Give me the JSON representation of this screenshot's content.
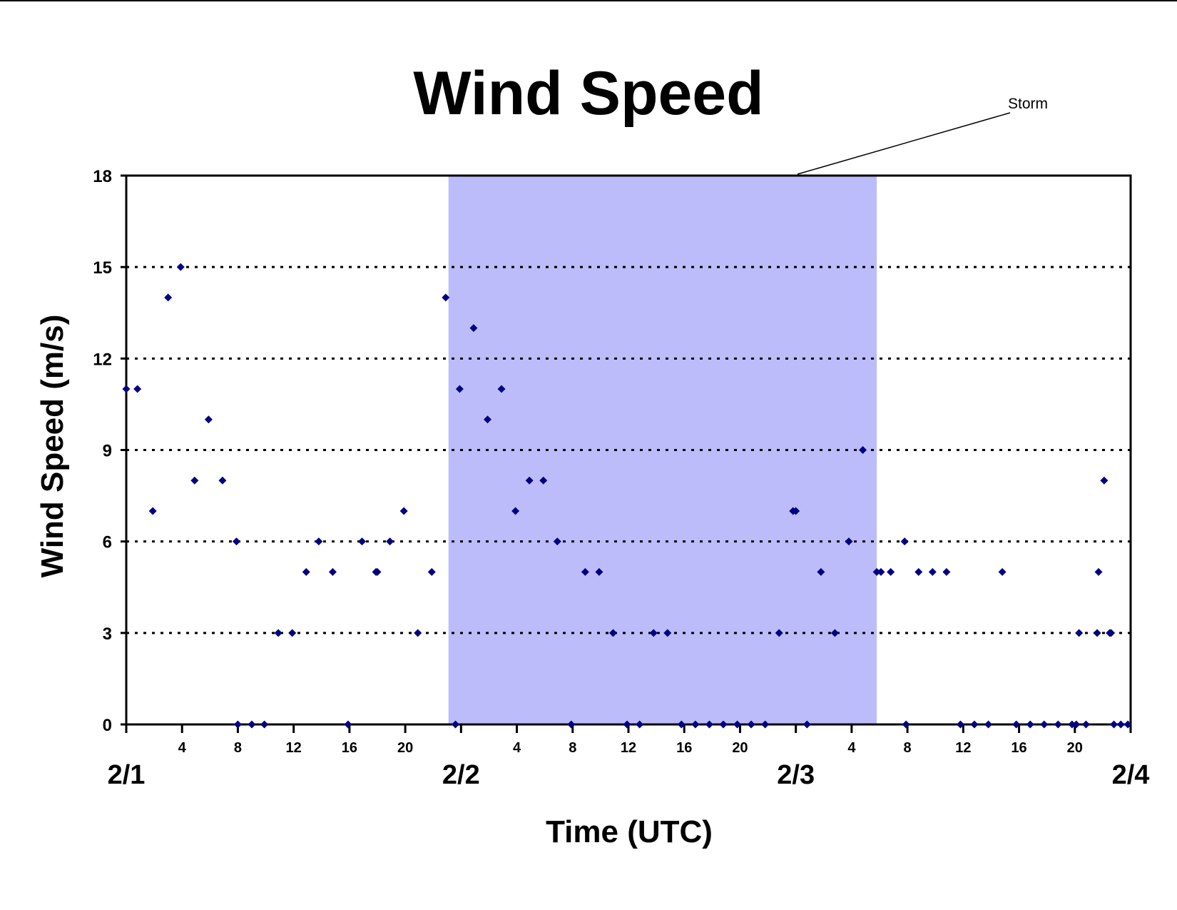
{
  "chart_data": {
    "type": "scatter",
    "title": "Wind Speed",
    "xlabel": "Time (UTC)",
    "ylabel": "Wind Speed (m/s)",
    "xlim": [
      0,
      72
    ],
    "ylim": [
      0,
      18
    ],
    "y_ticks": [
      "0",
      "3",
      "6",
      "9",
      "12",
      "15",
      "18"
    ],
    "grid": "dotted horizontal",
    "hour_ticks": [
      {
        "x": 4,
        "label": "4"
      },
      {
        "x": 8,
        "label": "8"
      },
      {
        "x": 12,
        "label": "12"
      },
      {
        "x": 16,
        "label": "16"
      },
      {
        "x": 20,
        "label": "20"
      },
      {
        "x": 28,
        "label": "4"
      },
      {
        "x": 32,
        "label": "8"
      },
      {
        "x": 36,
        "label": "12"
      },
      {
        "x": 40,
        "label": "16"
      },
      {
        "x": 44,
        "label": "20"
      },
      {
        "x": 52,
        "label": "4"
      },
      {
        "x": 56,
        "label": "8"
      },
      {
        "x": 60,
        "label": "12"
      },
      {
        "x": 64,
        "label": "16"
      },
      {
        "x": 68,
        "label": "20"
      }
    ],
    "day_ticks": [
      {
        "x": 0,
        "label": "2/1"
      },
      {
        "x": 24,
        "label": "2/2"
      },
      {
        "x": 48,
        "label": "2/3"
      },
      {
        "x": 72,
        "label": "2/4"
      }
    ],
    "highlight": {
      "label": "Storm",
      "x_start": 23.1,
      "x_end": 53.8,
      "color": "#bcbcfb"
    },
    "marker_color": "#000080",
    "points": [
      {
        "x": 0,
        "y": 11
      },
      {
        "x": 0.8,
        "y": 11
      },
      {
        "x": 1.9,
        "y": 7
      },
      {
        "x": 3,
        "y": 14
      },
      {
        "x": 3.9,
        "y": 15
      },
      {
        "x": 4.9,
        "y": 8
      },
      {
        "x": 5.9,
        "y": 10
      },
      {
        "x": 6.9,
        "y": 8
      },
      {
        "x": 7.9,
        "y": 6
      },
      {
        "x": 8,
        "y": 0
      },
      {
        "x": 9,
        "y": 0
      },
      {
        "x": 9.9,
        "y": 0
      },
      {
        "x": 10.9,
        "y": 3
      },
      {
        "x": 11.9,
        "y": 3
      },
      {
        "x": 12.9,
        "y": 5
      },
      {
        "x": 13.8,
        "y": 6
      },
      {
        "x": 14.8,
        "y": 5
      },
      {
        "x": 15.9,
        "y": 0
      },
      {
        "x": 16.9,
        "y": 6
      },
      {
        "x": 17.9,
        "y": 5
      },
      {
        "x": 18,
        "y": 5
      },
      {
        "x": 18.9,
        "y": 6
      },
      {
        "x": 19.9,
        "y": 7
      },
      {
        "x": 20.9,
        "y": 3
      },
      {
        "x": 21.9,
        "y": 5
      },
      {
        "x": 22.9,
        "y": 14
      },
      {
        "x": 23.6,
        "y": 0
      },
      {
        "x": 23.9,
        "y": 11
      },
      {
        "x": 24.9,
        "y": 13
      },
      {
        "x": 25.9,
        "y": 10
      },
      {
        "x": 26.9,
        "y": 11
      },
      {
        "x": 27.9,
        "y": 7
      },
      {
        "x": 28.9,
        "y": 8
      },
      {
        "x": 29.9,
        "y": 8
      },
      {
        "x": 30.9,
        "y": 6
      },
      {
        "x": 31.9,
        "y": 0
      },
      {
        "x": 32.9,
        "y": 5
      },
      {
        "x": 33.9,
        "y": 5
      },
      {
        "x": 34.9,
        "y": 3
      },
      {
        "x": 35.9,
        "y": 0
      },
      {
        "x": 36.8,
        "y": 0
      },
      {
        "x": 37.8,
        "y": 3
      },
      {
        "x": 38.8,
        "y": 3
      },
      {
        "x": 39.8,
        "y": 0
      },
      {
        "x": 40.8,
        "y": 0
      },
      {
        "x": 41.8,
        "y": 0
      },
      {
        "x": 42.8,
        "y": 0
      },
      {
        "x": 43.8,
        "y": 0
      },
      {
        "x": 44.8,
        "y": 0
      },
      {
        "x": 45.8,
        "y": 0
      },
      {
        "x": 46.8,
        "y": 3
      },
      {
        "x": 47.8,
        "y": 7
      },
      {
        "x": 48,
        "y": 7
      },
      {
        "x": 48.8,
        "y": 0
      },
      {
        "x": 49.8,
        "y": 5
      },
      {
        "x": 50.8,
        "y": 3
      },
      {
        "x": 51.8,
        "y": 6
      },
      {
        "x": 52.8,
        "y": 9
      },
      {
        "x": 53.8,
        "y": 5
      },
      {
        "x": 54.1,
        "y": 5
      },
      {
        "x": 54.8,
        "y": 5
      },
      {
        "x": 55.8,
        "y": 6
      },
      {
        "x": 55.9,
        "y": 0
      },
      {
        "x": 56.8,
        "y": 5
      },
      {
        "x": 57.8,
        "y": 5
      },
      {
        "x": 58.8,
        "y": 5
      },
      {
        "x": 59.8,
        "y": 0
      },
      {
        "x": 60.8,
        "y": 0
      },
      {
        "x": 61.8,
        "y": 0
      },
      {
        "x": 62.8,
        "y": 5
      },
      {
        "x": 63.8,
        "y": 0
      },
      {
        "x": 64.8,
        "y": 0
      },
      {
        "x": 65.8,
        "y": 0
      },
      {
        "x": 66.8,
        "y": 0
      },
      {
        "x": 67.8,
        "y": 0
      },
      {
        "x": 68.1,
        "y": 0
      },
      {
        "x": 68.3,
        "y": 3
      },
      {
        "x": 68.8,
        "y": 0
      },
      {
        "x": 69.6,
        "y": 3
      },
      {
        "x": 69.7,
        "y": 5
      },
      {
        "x": 70.1,
        "y": 8
      },
      {
        "x": 70.5,
        "y": 3
      },
      {
        "x": 70.6,
        "y": 3
      },
      {
        "x": 70.8,
        "y": 0
      },
      {
        "x": 71.3,
        "y": 0
      },
      {
        "x": 71.8,
        "y": 0
      }
    ]
  }
}
